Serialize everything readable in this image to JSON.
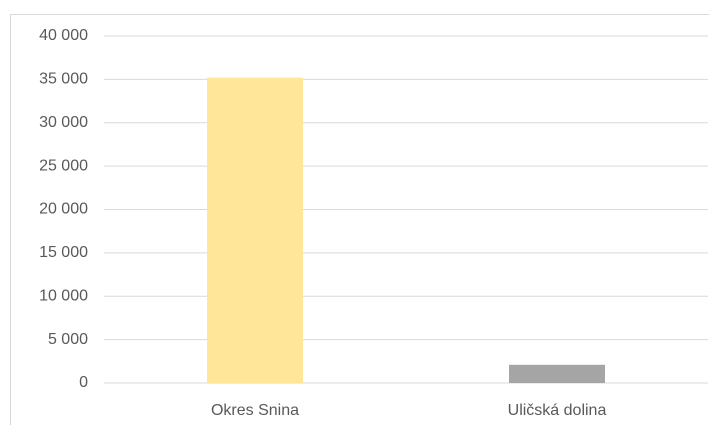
{
  "chart_data": {
    "type": "bar",
    "categories": [
      "Okres Snina",
      "Uličská dolina"
    ],
    "values": [
      35200,
      2100
    ],
    "colors": [
      "#ffe699",
      "#a5a5a5"
    ],
    "ylim": [
      0,
      40000
    ],
    "yticks": [
      0,
      {
        "value": 5000,
        "label": "5 000"
      },
      {
        "value": 10000,
        "label": "10 000"
      },
      {
        "value": 15000,
        "label": "15 000"
      },
      {
        "value": 20000,
        "label": "20 000"
      },
      {
        "value": 25000,
        "label": "25 000"
      },
      {
        "value": 30000,
        "label": "30 000"
      },
      {
        "value": 35000,
        "label": "35 000"
      },
      {
        "value": 40000,
        "label": "40 000"
      }
    ],
    "grid": true
  }
}
